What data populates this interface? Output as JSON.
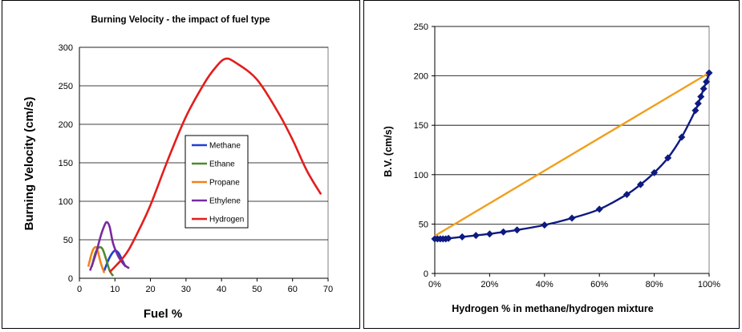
{
  "chart_data": [
    {
      "type": "line",
      "title": "Burning Velocity - the impact of fuel type",
      "xlabel": "Fuel %",
      "ylabel": "Burning Velocity (cm/s)",
      "xlim": [
        0,
        70
      ],
      "ylim": [
        0,
        300
      ],
      "xticks": [
        0,
        10,
        20,
        30,
        40,
        50,
        60,
        70
      ],
      "yticks": [
        0,
        50,
        100,
        150,
        200,
        250,
        300
      ],
      "grid": "horizontal",
      "legend_position": "center",
      "series": [
        {
          "name": "Methane",
          "color": "#1f3fd6",
          "points": [
            [
              7,
              10
            ],
            [
              8,
              22
            ],
            [
              9,
              31
            ],
            [
              10,
              36
            ],
            [
              11,
              33
            ],
            [
              12,
              24
            ],
            [
              13,
              15
            ]
          ]
        },
        {
          "name": "Ethane",
          "color": "#4f8a2e",
          "points": [
            [
              3.5,
              15
            ],
            [
              4.5,
              33
            ],
            [
              5.5,
              40
            ],
            [
              6.5,
              38
            ],
            [
              7.5,
              25
            ],
            [
              8.5,
              10
            ],
            [
              9.5,
              3
            ]
          ]
        },
        {
          "name": "Propane",
          "color": "#f0821e",
          "points": [
            [
              2.5,
              15
            ],
            [
              3.5,
              33
            ],
            [
              4.3,
              40
            ],
            [
              5,
              38
            ],
            [
              6,
              20
            ],
            [
              7,
              7
            ]
          ]
        },
        {
          "name": "Ethylene",
          "color": "#7a2aa0",
          "points": [
            [
              3,
              10
            ],
            [
              4.5,
              30
            ],
            [
              6,
              55
            ],
            [
              7,
              68
            ],
            [
              7.7,
              73
            ],
            [
              8.5,
              67
            ],
            [
              9.5,
              45
            ],
            [
              11,
              28
            ],
            [
              12.5,
              18
            ],
            [
              14,
              13
            ]
          ]
        },
        {
          "name": "Hydrogen",
          "color": "#e31d1d",
          "points": [
            [
              8.5,
              8
            ],
            [
              10,
              15
            ],
            [
              12,
              25
            ],
            [
              14,
              38
            ],
            [
              17,
              65
            ],
            [
              20,
              95
            ],
            [
              25,
              155
            ],
            [
              30,
              210
            ],
            [
              35,
              252
            ],
            [
              38,
              272
            ],
            [
              41,
              285
            ],
            [
              44,
              280
            ],
            [
              50,
              258
            ],
            [
              56,
              215
            ],
            [
              60,
              180
            ],
            [
              64,
              140
            ],
            [
              68,
              109
            ]
          ]
        }
      ]
    },
    {
      "type": "line",
      "title": "",
      "xlabel": "Hydrogen % in methane/hydrogen mixture",
      "ylabel": "B.V. (cm/s)",
      "xlim": [
        0,
        100
      ],
      "ylim": [
        0,
        250
      ],
      "xticks": [
        "0%",
        "20%",
        "40%",
        "60%",
        "80%",
        "100%"
      ],
      "xtick_values": [
        0,
        20,
        40,
        60,
        80,
        100
      ],
      "yticks": [
        0,
        50,
        100,
        150,
        200,
        250
      ],
      "grid": "horizontal",
      "series": [
        {
          "name": "",
          "color": "#0d1a80",
          "marker": "diamond",
          "points": [
            [
              0,
              35
            ],
            [
              1,
              35
            ],
            [
              2,
              35
            ],
            [
              3,
              35
            ],
            [
              4,
              35
            ],
            [
              5,
              35.5
            ],
            [
              10,
              37
            ],
            [
              15,
              38.5
            ],
            [
              20,
              40
            ],
            [
              25,
              42
            ],
            [
              30,
              44
            ],
            [
              40,
              49
            ],
            [
              50,
              56
            ],
            [
              60,
              65
            ],
            [
              70,
              80
            ],
            [
              75,
              90
            ],
            [
              80,
              102
            ],
            [
              85,
              117
            ],
            [
              90,
              138
            ],
            [
              95,
              165
            ],
            [
              96,
              172
            ],
            [
              97,
              179
            ],
            [
              98,
              187
            ],
            [
              99,
              194
            ],
            [
              100,
              203
            ]
          ]
        },
        {
          "name": "",
          "color": "#f0a01e",
          "marker": "none",
          "points": [
            [
              0,
              38
            ],
            [
              100,
              203
            ]
          ]
        }
      ]
    }
  ],
  "legend_left": [
    "Methane",
    "Ethane",
    "Propane",
    "Ethylene",
    "Hydrogen"
  ]
}
